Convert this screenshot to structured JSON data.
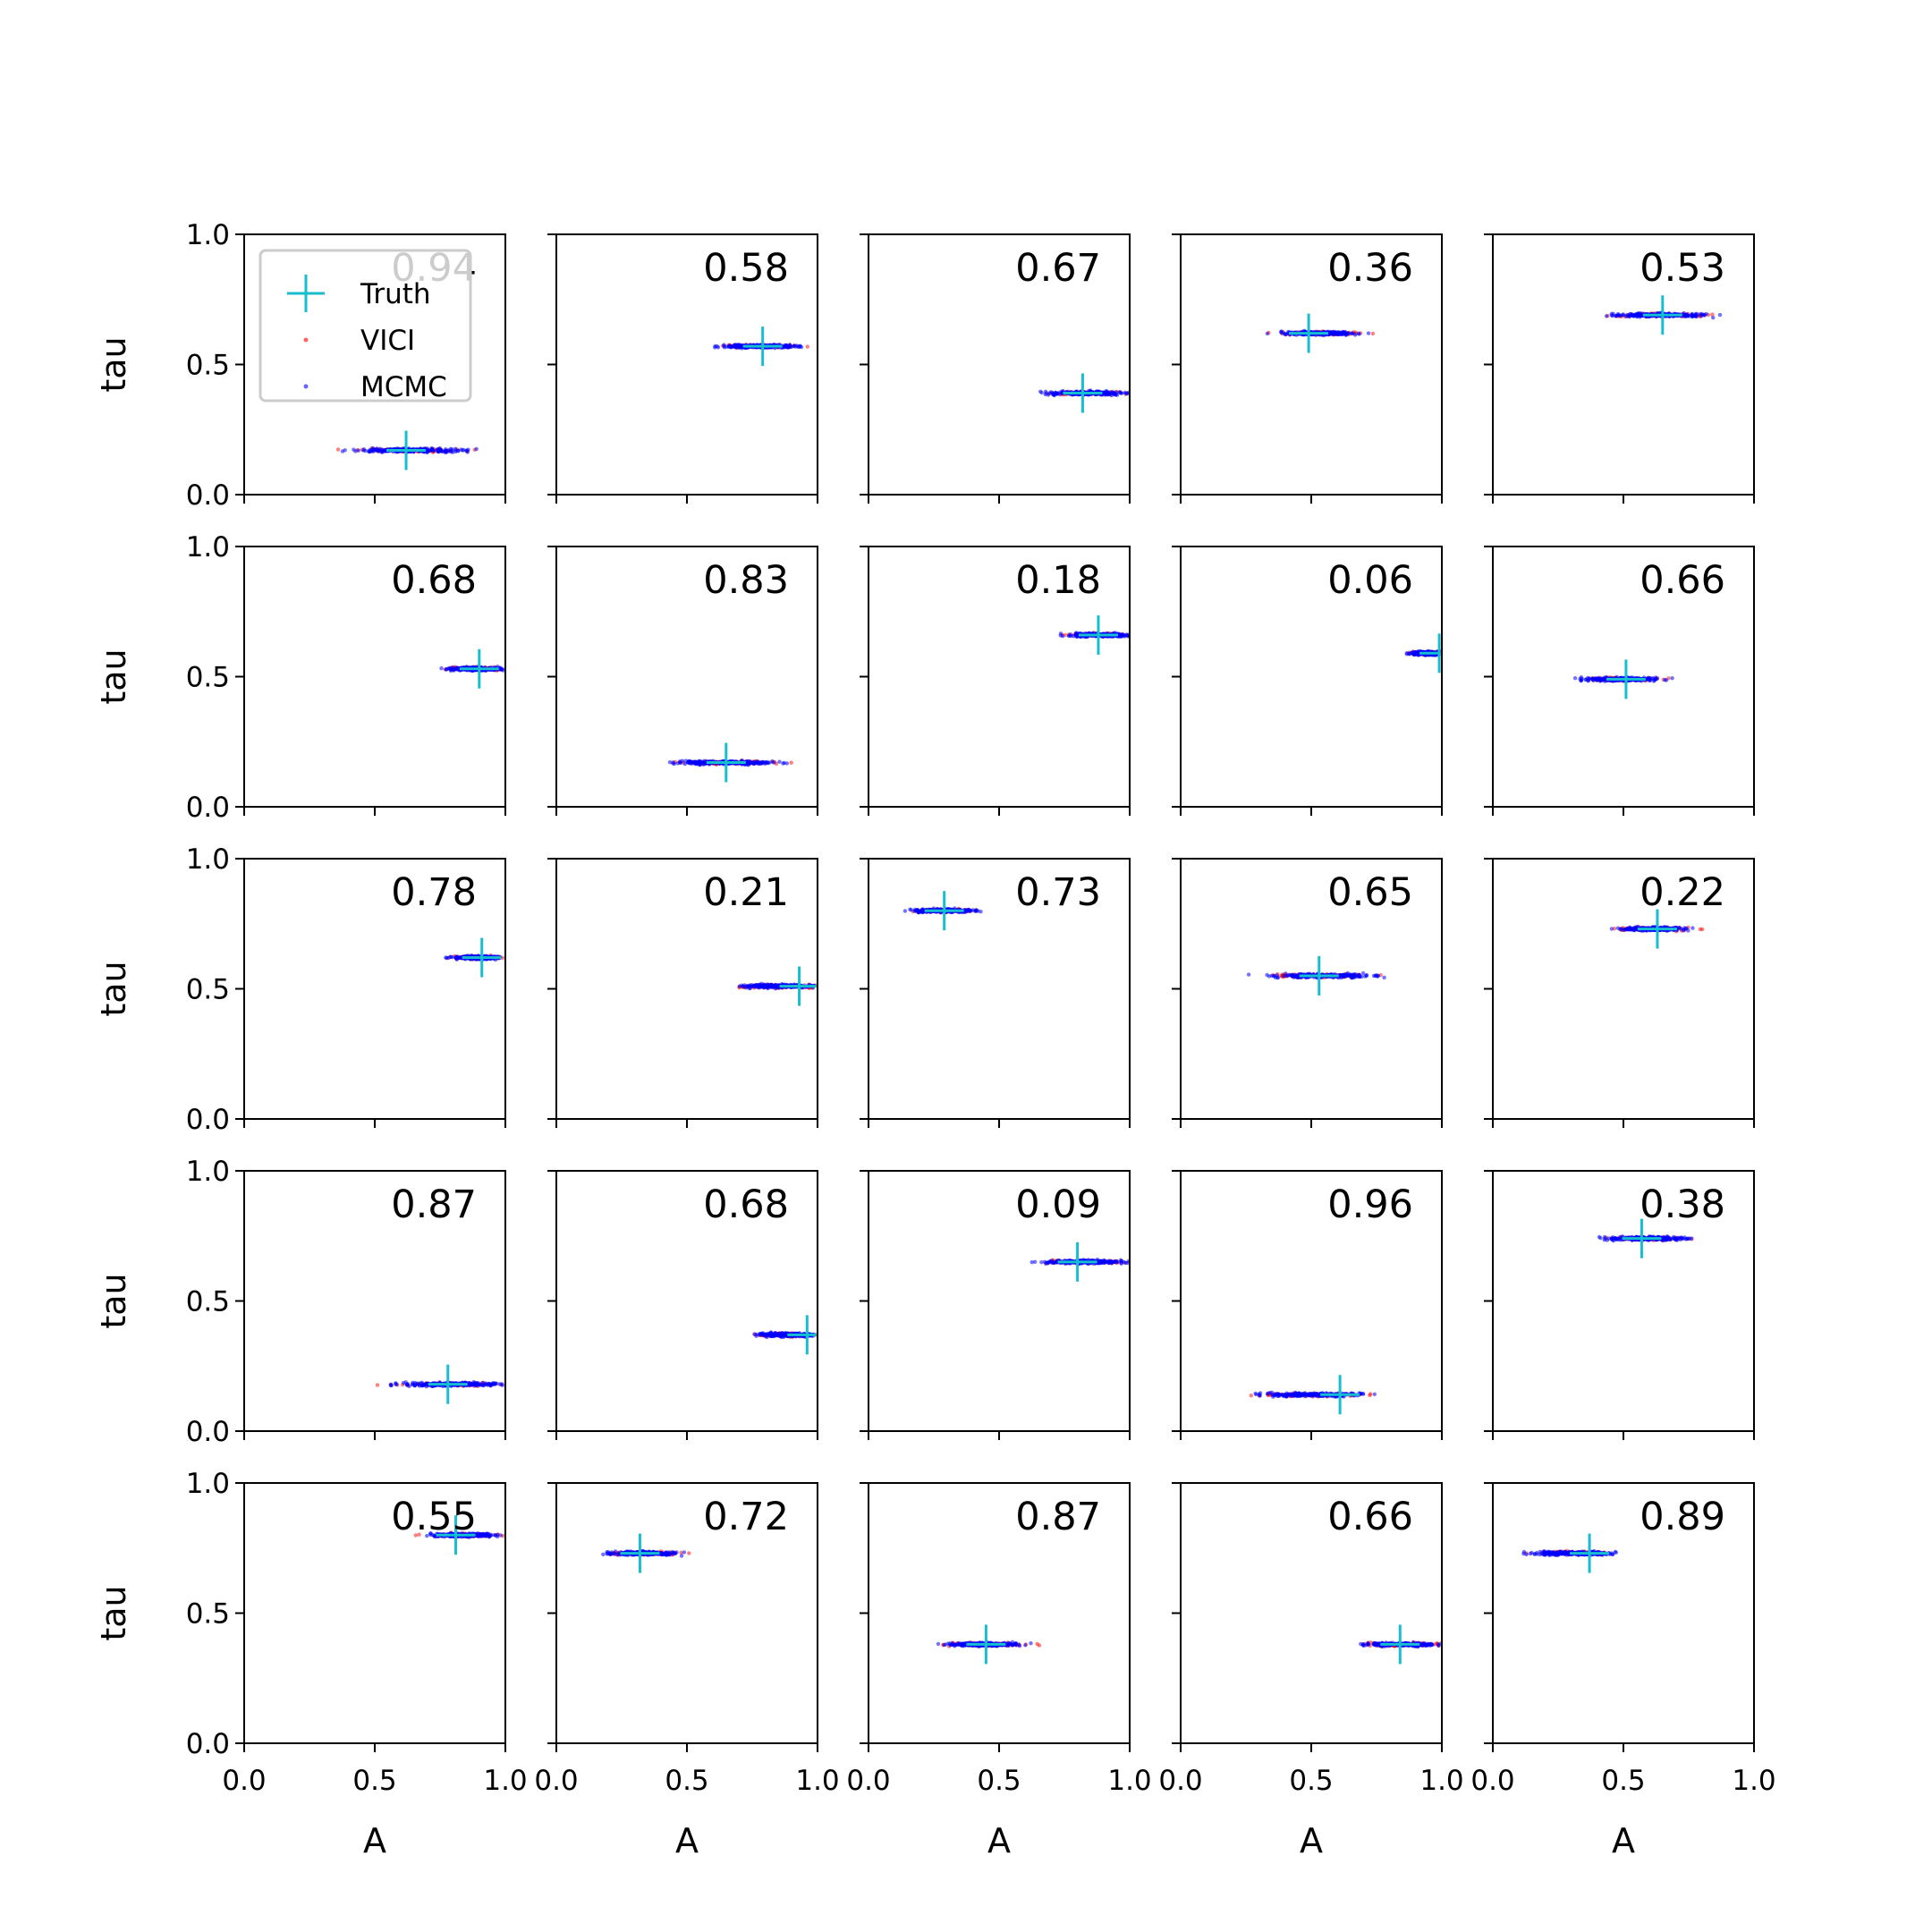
{
  "colors": {
    "truth": "#17becf",
    "vici": "#ff0000",
    "mcmc": "#0000ff",
    "frame": "#000000"
  },
  "legend": {
    "entries": [
      "Truth",
      "VICI",
      "MCMC"
    ],
    "placement": "upper-left of first panel"
  },
  "chart_data": {
    "type": "scatter",
    "layout": "5x5 grid of scatter panels",
    "xlabel": "A",
    "ylabel": "tau",
    "xlim": [
      0.0,
      1.0
    ],
    "ylim": [
      0.0,
      1.0
    ],
    "xticks": [
      "0.0",
      "0.5",
      "1.0"
    ],
    "yticks": [
      "0.0",
      "0.5",
      "1.0"
    ],
    "grid": false,
    "panels": [
      {
        "row": 0,
        "col": 0,
        "annotation": "0.94",
        "truth": [
          0.62,
          0.17
        ],
        "cloud_x": [
          0.42,
          0.86
        ],
        "cloud_y": 0.17
      },
      {
        "row": 0,
        "col": 1,
        "annotation": "0.58",
        "truth": [
          0.79,
          0.57
        ],
        "cloud_x": [
          0.63,
          0.93
        ],
        "cloud_y": 0.57
      },
      {
        "row": 0,
        "col": 2,
        "annotation": "0.67",
        "truth": [
          0.82,
          0.39
        ],
        "cloud_x": [
          0.68,
          1.0
        ],
        "cloud_y": 0.39
      },
      {
        "row": 0,
        "col": 3,
        "annotation": "0.36",
        "truth": [
          0.49,
          0.62
        ],
        "cloud_x": [
          0.37,
          0.68
        ],
        "cloud_y": 0.62
      },
      {
        "row": 0,
        "col": 4,
        "annotation": "0.53",
        "truth": [
          0.65,
          0.69
        ],
        "cloud_x": [
          0.45,
          0.83
        ],
        "cloud_y": 0.69
      },
      {
        "row": 1,
        "col": 0,
        "annotation": "0.68",
        "truth": [
          0.9,
          0.53
        ],
        "cloud_x": [
          0.78,
          1.0
        ],
        "cloud_y": 0.53
      },
      {
        "row": 1,
        "col": 1,
        "annotation": "0.83",
        "truth": [
          0.65,
          0.17
        ],
        "cloud_x": [
          0.45,
          0.86
        ],
        "cloud_y": 0.17
      },
      {
        "row": 1,
        "col": 2,
        "annotation": "0.18",
        "truth": [
          0.88,
          0.66
        ],
        "cloud_x": [
          0.76,
          1.0
        ],
        "cloud_y": 0.66
      },
      {
        "row": 1,
        "col": 3,
        "annotation": "0.06",
        "truth": [
          0.99,
          0.59
        ],
        "cloud_x": [
          0.88,
          1.0
        ],
        "cloud_y": 0.59
      },
      {
        "row": 1,
        "col": 4,
        "annotation": "0.66",
        "truth": [
          0.51,
          0.49
        ],
        "cloud_x": [
          0.34,
          0.65
        ],
        "cloud_y": 0.49
      },
      {
        "row": 2,
        "col": 0,
        "annotation": "0.78",
        "truth": [
          0.91,
          0.62
        ],
        "cloud_x": [
          0.79,
          1.0
        ],
        "cloud_y": 0.62
      },
      {
        "row": 2,
        "col": 1,
        "annotation": "0.21",
        "truth": [
          0.93,
          0.51
        ],
        "cloud_x": [
          0.7,
          1.0
        ],
        "cloud_y": 0.51
      },
      {
        "row": 2,
        "col": 2,
        "annotation": "0.73",
        "truth": [
          0.29,
          0.8
        ],
        "cloud_x": [
          0.16,
          0.42
        ],
        "cloud_y": 0.8
      },
      {
        "row": 2,
        "col": 3,
        "annotation": "0.65",
        "truth": [
          0.53,
          0.55
        ],
        "cloud_x": [
          0.34,
          0.75
        ],
        "cloud_y": 0.55
      },
      {
        "row": 2,
        "col": 4,
        "annotation": "0.22",
        "truth": [
          0.63,
          0.73
        ],
        "cloud_x": [
          0.48,
          0.76
        ],
        "cloud_y": 0.73
      },
      {
        "row": 3,
        "col": 0,
        "annotation": "0.87",
        "truth": [
          0.78,
          0.18
        ],
        "cloud_x": [
          0.58,
          1.0
        ],
        "cloud_y": 0.18
      },
      {
        "row": 3,
        "col": 1,
        "annotation": "0.68",
        "truth": [
          0.96,
          0.37
        ],
        "cloud_x": [
          0.77,
          1.0
        ],
        "cloud_y": 0.37
      },
      {
        "row": 3,
        "col": 2,
        "annotation": "0.09",
        "truth": [
          0.8,
          0.65
        ],
        "cloud_x": [
          0.66,
          1.0
        ],
        "cloud_y": 0.65
      },
      {
        "row": 3,
        "col": 3,
        "annotation": "0.96",
        "truth": [
          0.61,
          0.14
        ],
        "cloud_x": [
          0.3,
          0.71
        ],
        "cloud_y": 0.14
      },
      {
        "row": 3,
        "col": 4,
        "annotation": "0.38",
        "truth": [
          0.57,
          0.74
        ],
        "cloud_x": [
          0.43,
          0.76
        ],
        "cloud_y": 0.74
      },
      {
        "row": 4,
        "col": 0,
        "annotation": "0.55",
        "truth": [
          0.81,
          0.8
        ],
        "cloud_x": [
          0.7,
          0.98
        ],
        "cloud_y": 0.8
      },
      {
        "row": 4,
        "col": 1,
        "annotation": "0.72",
        "truth": [
          0.32,
          0.73
        ],
        "cloud_x": [
          0.19,
          0.47
        ],
        "cloud_y": 0.73
      },
      {
        "row": 4,
        "col": 2,
        "annotation": "0.87",
        "truth": [
          0.45,
          0.38
        ],
        "cloud_x": [
          0.3,
          0.59
        ],
        "cloud_y": 0.38
      },
      {
        "row": 4,
        "col": 3,
        "annotation": "0.66",
        "truth": [
          0.84,
          0.38
        ],
        "cloud_x": [
          0.7,
          1.0
        ],
        "cloud_y": 0.38
      },
      {
        "row": 4,
        "col": 4,
        "annotation": "0.89",
        "truth": [
          0.37,
          0.73
        ],
        "cloud_x": [
          0.15,
          0.46
        ],
        "cloud_y": 0.73
      }
    ]
  }
}
